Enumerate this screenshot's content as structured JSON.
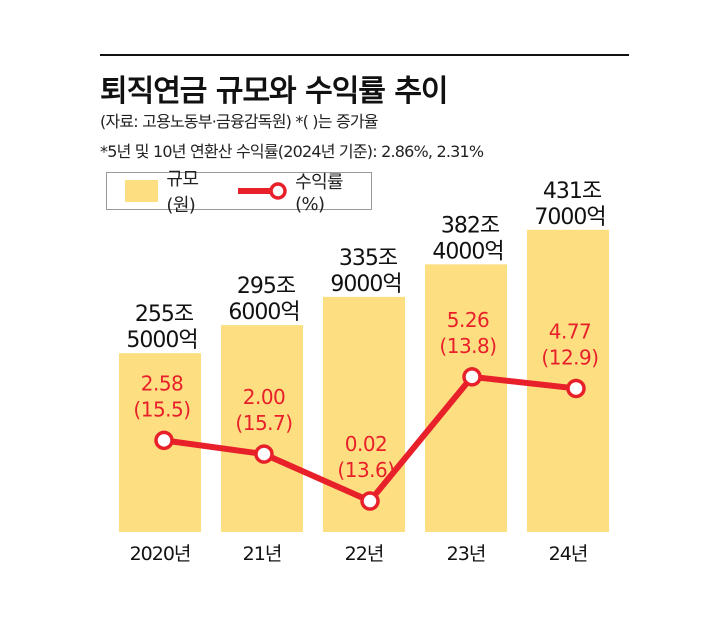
{
  "header": {
    "title": "퇴직연금 규모와 수익률 추이",
    "source": "(자료: 고용노동부·금융감독원) *(  )는 증가율",
    "note": "*5년 및 10년 연환산 수익률(2024년 기준): 2.86%, 2.31%"
  },
  "legend": {
    "bar": "규모(원)",
    "line": "수익률(%)"
  },
  "colors": {
    "bar": "#fddf82",
    "line": "#e8202a",
    "text_line": "#e8202a"
  },
  "chart_data": {
    "type": "bar+line",
    "categories": [
      "2020년",
      "21년",
      "22년",
      "23년",
      "24년"
    ],
    "series": [
      {
        "name": "규모(원)",
        "type": "bar",
        "values": [
          255.5,
          295.6,
          335.9,
          382.4,
          431.7
        ],
        "labels": [
          [
            "255조",
            "5000억"
          ],
          [
            "295조",
            "6000억"
          ],
          [
            "335조",
            "9000억"
          ],
          [
            "382조",
            "4000억"
          ],
          [
            "431조",
            "7000억"
          ]
        ]
      },
      {
        "name": "수익률(%)",
        "type": "line",
        "values": [
          2.58,
          2.0,
          0.02,
          5.26,
          4.77
        ],
        "labels": [
          "2.58",
          "2.00",
          "0.02",
          "5.26",
          "4.77"
        ],
        "growth_labels": [
          "(15.5)",
          "(15.7)",
          "(13.6)",
          "(13.8)",
          "(12.9)"
        ]
      }
    ],
    "grid": false,
    "legend_position": "top-left"
  }
}
